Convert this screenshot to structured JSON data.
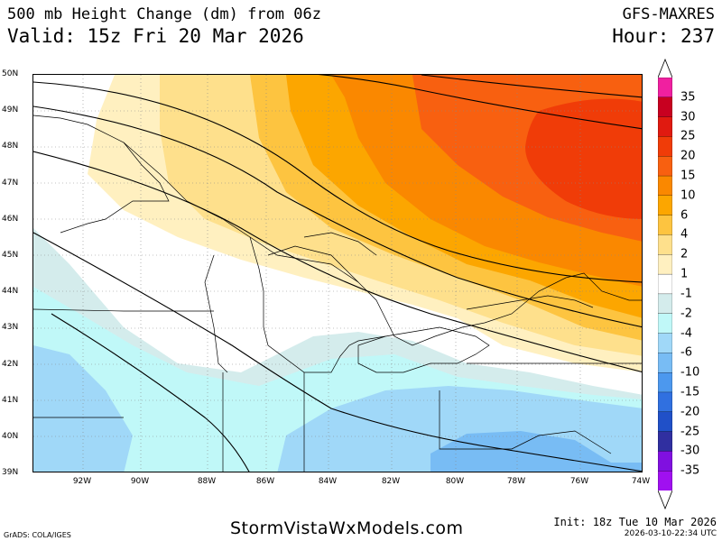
{
  "header": {
    "title": "500 mb Height Change (dm) from 06z",
    "valid": "Valid: 15z Fri 20 Mar 2026",
    "model": "GFS-MAXRES",
    "hour": "Hour: 237"
  },
  "map": {
    "lat_labels": [
      "50N",
      "49N",
      "48N",
      "47N",
      "46N",
      "45N",
      "44N",
      "43N",
      "42N",
      "41N",
      "40N",
      "39N"
    ],
    "lon_labels": [
      "92W",
      "90W",
      "88W",
      "86W",
      "84W",
      "82W",
      "80W",
      "78W",
      "76W",
      "74W"
    ],
    "lat_range": [
      39,
      50
    ],
    "lon_range": [
      -93.75,
      -74
    ],
    "grid": "dotted"
  },
  "colorbar": {
    "levels": [
      "35",
      "30",
      "25",
      "20",
      "15",
      "10",
      "6",
      "4",
      "2",
      "1",
      "-1",
      "-2",
      "-4",
      "-6",
      "-10",
      "-15",
      "-20",
      "-25",
      "-30",
      "-35"
    ],
    "colors": [
      "#f020a0",
      "#c80020",
      "#e01a10",
      "#f03c08",
      "#f86010",
      "#fa8800",
      "#fca600",
      "#fdc440",
      "#fee08c",
      "#fff0c0",
      "#ffffff",
      "#d4ecec",
      "#c0f8f8",
      "#a0d8f8",
      "#78bcf4",
      "#4c98ee",
      "#3070e0",
      "#2050c8",
      "#302fa0",
      "#8010e0",
      "#a010f0"
    ]
  },
  "footer": {
    "grads": "GrADS: COLA/IGES",
    "site": "StormVistaWxModels.com",
    "init": "Init: 18z Tue 10 Mar 2026",
    "stamp": "2026-03-10-22:34 UTC"
  }
}
